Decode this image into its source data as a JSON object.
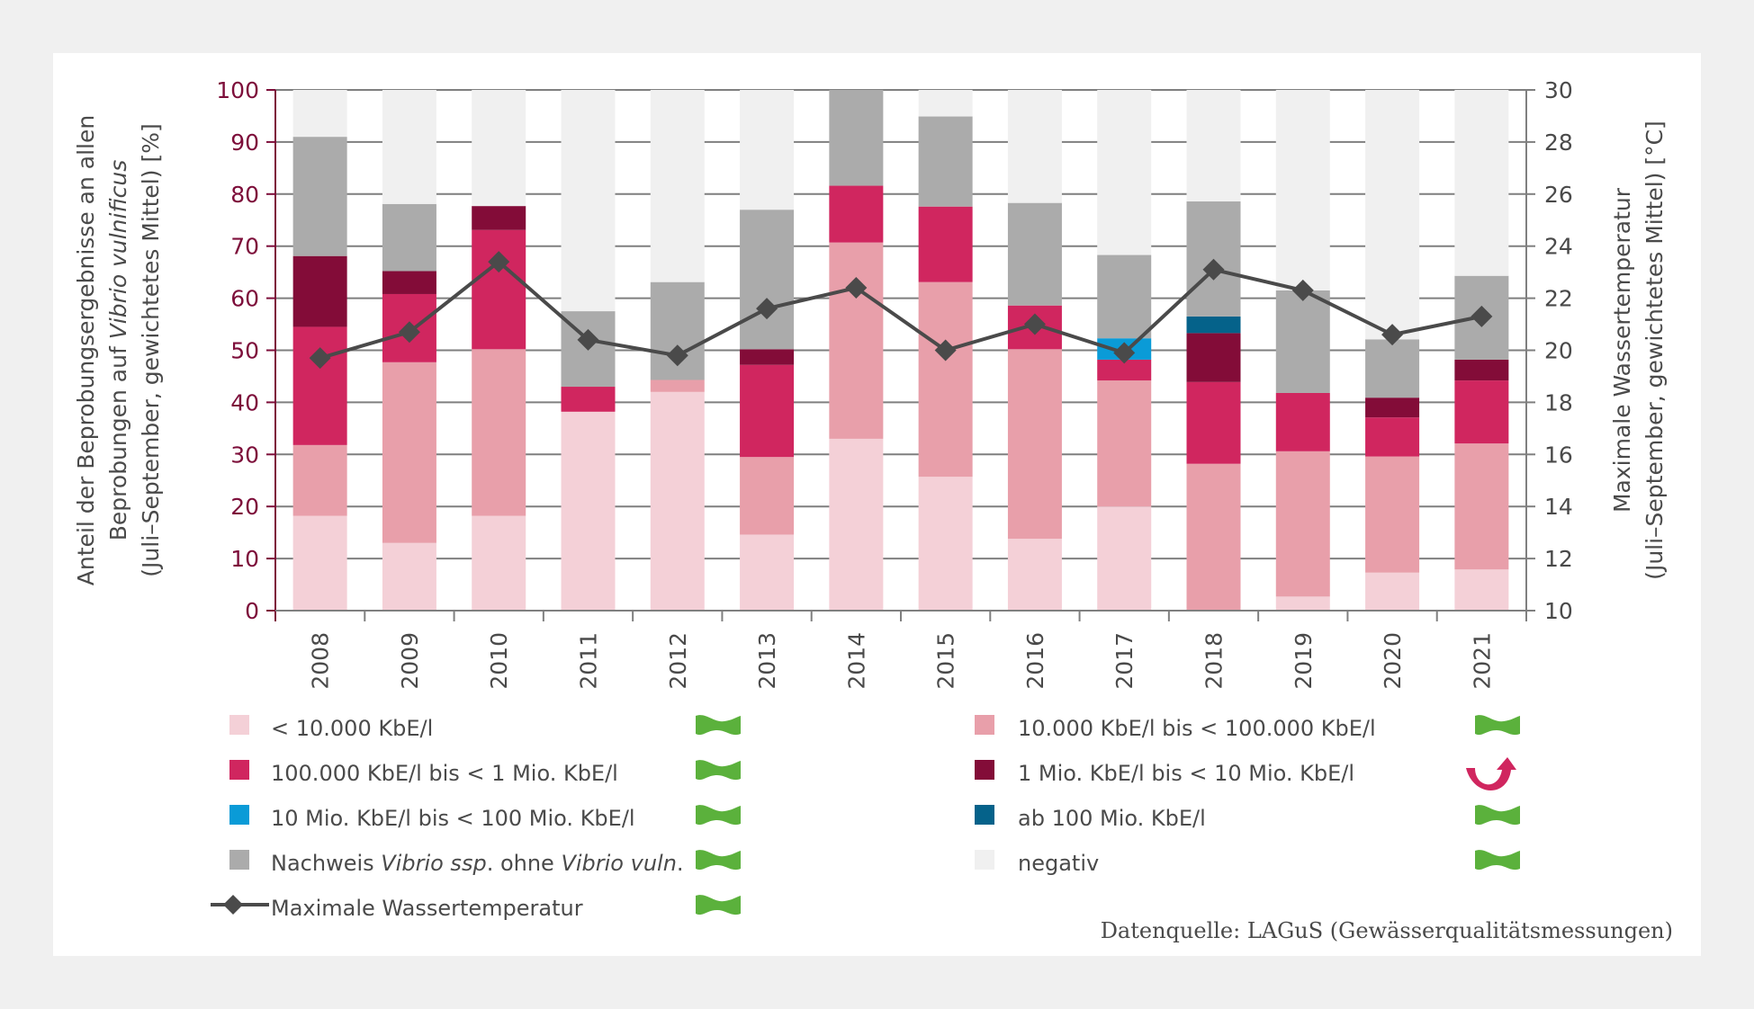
{
  "chart_data": {
    "type": "bar",
    "stacked": true,
    "title": "",
    "categories": [
      "2008",
      "2009",
      "2010",
      "2011",
      "2012",
      "2013",
      "2014",
      "2015",
      "2016",
      "2017",
      "2018",
      "2019",
      "2020",
      "2021"
    ],
    "ylabel_lines": [
      [
        {
          "t": "Anteil der Beprobungsergebnisse an allen",
          "i": false
        }
      ],
      [
        {
          "t": "Beprobungen auf ",
          "i": false
        },
        {
          "t": "Vibrio vulnificus",
          "i": true
        }
      ],
      [
        {
          "t": "(Juli–September, gewichtetes Mittel) [%]",
          "i": false
        }
      ]
    ],
    "y2label_lines": [
      [
        {
          "t": "Maximale Wassertemperatur",
          "i": false
        }
      ],
      [
        {
          "t": "(Juli–September, gewichtetes Mittel) [°C]",
          "i": false
        }
      ]
    ],
    "ylim": [
      0,
      100
    ],
    "yticks": [
      0,
      10,
      20,
      30,
      40,
      50,
      60,
      70,
      80,
      90,
      100
    ],
    "y2lim": [
      10,
      30
    ],
    "y2ticks": [
      10,
      12,
      14,
      16,
      18,
      20,
      22,
      24,
      26,
      28,
      30
    ],
    "grid": true,
    "legend_position": "bottom",
    "series": [
      {
        "name": "< 10.000 KbE/l",
        "color": "#f4d0d7",
        "trend": "stable",
        "values": [
          18.2,
          13.0,
          18.2,
          38.2,
          42.0,
          14.6,
          33.0,
          25.7,
          13.8,
          20.0,
          0,
          2.7,
          7.3,
          7.9
        ]
      },
      {
        "name": "10.000 KbE/l bis < 100.000 KbE/l",
        "color": "#e89faa",
        "trend": "stable",
        "values": [
          13.6,
          34.7,
          32.0,
          0,
          2.3,
          14.9,
          37.7,
          37.4,
          36.4,
          24.2,
          28.2,
          27.9,
          22.3,
          24.2
        ]
      },
      {
        "name": "100.000 KbE/l bis < 1 Mio. KbE/l",
        "color": "#d0265f",
        "trend": "stable",
        "values": [
          22.7,
          13.1,
          22.9,
          4.8,
          0,
          17.7,
          10.9,
          14.5,
          8.4,
          4.0,
          15.7,
          11.2,
          7.5,
          12.1
        ]
      },
      {
        "name": "1 Mio. KbE/l bis < 10 Mio. KbE/l",
        "color": "#830c38",
        "trend": "rising",
        "values": [
          13.6,
          4.4,
          4.6,
          0,
          0,
          3.0,
          0,
          0,
          0,
          0,
          9.4,
          0,
          3.8,
          4.0
        ]
      },
      {
        "name": "10 Mio. KbE/l bis < 100 Mio. KbE/l",
        "color": "#0a9bd7",
        "trend": "stable",
        "values": [
          0,
          0,
          0,
          0,
          0,
          0,
          0,
          0,
          0,
          4.1,
          0,
          0,
          0,
          0
        ]
      },
      {
        "name": "ab 100 Mio. KbE/l",
        "color": "#05628a",
        "trend": "stable",
        "values": [
          0,
          0,
          0,
          0,
          0,
          0,
          0,
          0,
          0,
          0,
          3.2,
          0,
          0,
          0
        ]
      },
      {
        "name_parts": [
          {
            "t": "Nachweis ",
            "i": false
          },
          {
            "t": "Vibrio ssp",
            "i": true
          },
          {
            "t": ". ohne ",
            "i": false
          },
          {
            "t": "Vibrio vuln",
            "i": true
          },
          {
            "t": ".",
            "i": false
          }
        ],
        "name": "Nachweis Vibrio ssp. ohne Vibrio vuln.",
        "color": "#ababab",
        "trend": "stable",
        "values": [
          22.9,
          12.9,
          0,
          14.5,
          18.8,
          26.8,
          18.4,
          17.3,
          19.7,
          16.0,
          22.1,
          19.7,
          11.2,
          16.1
        ]
      },
      {
        "name": "negativ",
        "color": "#f0f0f0",
        "trend": "stable",
        "values": [
          9.0,
          21.9,
          22.3,
          42.5,
          36.9,
          23.0,
          0,
          5.1,
          21.7,
          31.7,
          21.4,
          38.5,
          47.9,
          35.7
        ]
      }
    ],
    "line_series": {
      "name": "Maximale Wassertemperatur",
      "axis": "right",
      "color": "#4a4a4a",
      "marker": "diamond",
      "trend": "stable",
      "values": [
        19.7,
        20.7,
        23.4,
        20.4,
        19.8,
        21.6,
        22.4,
        20.0,
        21.0,
        19.9,
        23.1,
        22.3,
        20.6,
        21.3
      ]
    },
    "legend_order": [
      0,
      1,
      2,
      3,
      4,
      5,
      6,
      7
    ],
    "trend_icons": {
      "stable": "green-wave-flag-icon",
      "rising": "pink-curved-up-arrow-icon"
    },
    "trend_colors": {
      "stable": "#5bb13c",
      "rising": "#d0265f"
    },
    "source": "Datenquelle: LAGuS (Gewässerqualitätsmessungen)"
  },
  "colors": {
    "left_axis": "#7d0e3a",
    "text": "#4a4a4a",
    "grid": "#7f7f7f",
    "background": "#f0f0f0"
  }
}
